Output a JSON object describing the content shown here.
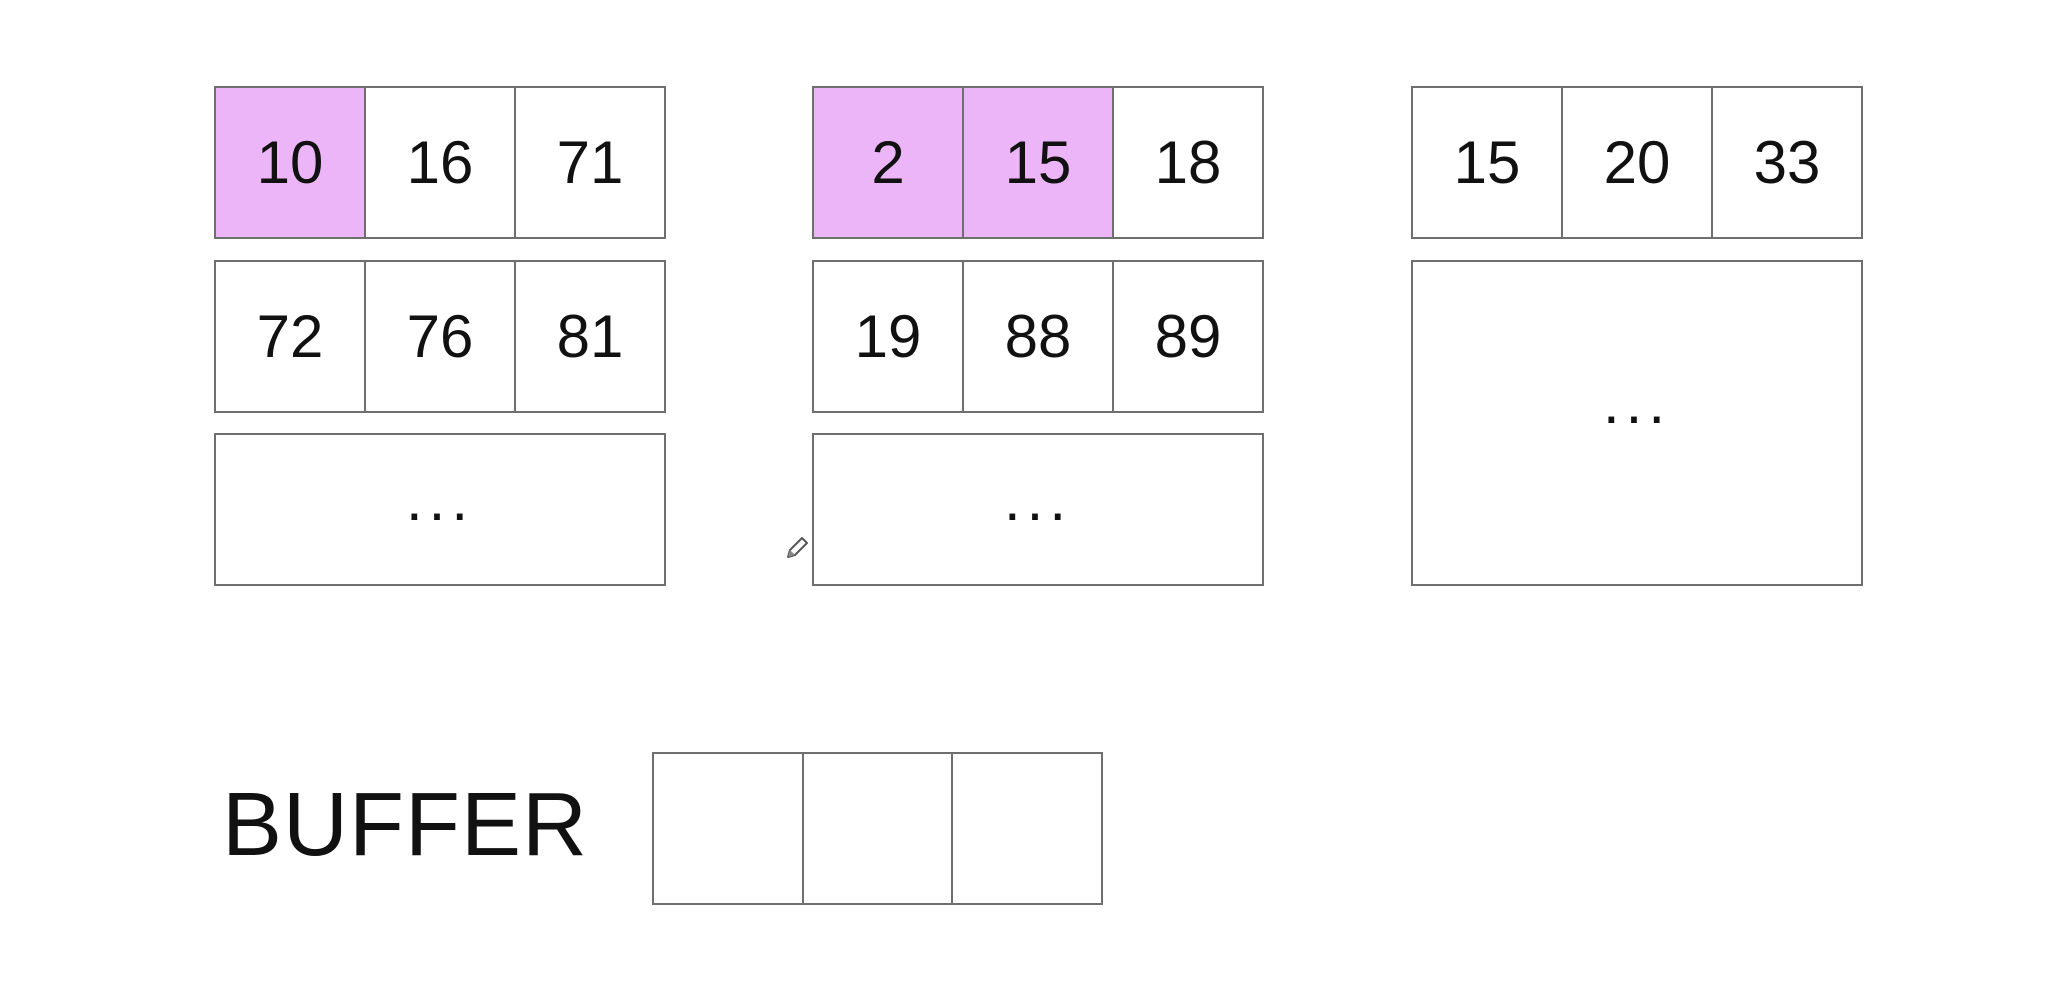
{
  "run1": {
    "page1": [
      "10",
      "16",
      "71"
    ],
    "page2": [
      "72",
      "76",
      "81"
    ],
    "more": "..."
  },
  "run2": {
    "page1": [
      "2",
      "15",
      "18"
    ],
    "page2": [
      "19",
      "88",
      "89"
    ],
    "more": "..."
  },
  "run3": {
    "page1": [
      "15",
      "20",
      "33"
    ],
    "more": "..."
  },
  "buffer": {
    "label": "BUFFER",
    "cells": [
      "",
      "",
      ""
    ]
  },
  "colors": {
    "highlight": "#ecb5f7",
    "border": "#6f6f6f"
  },
  "icons": {
    "cursor": "pencil-cursor-icon"
  }
}
